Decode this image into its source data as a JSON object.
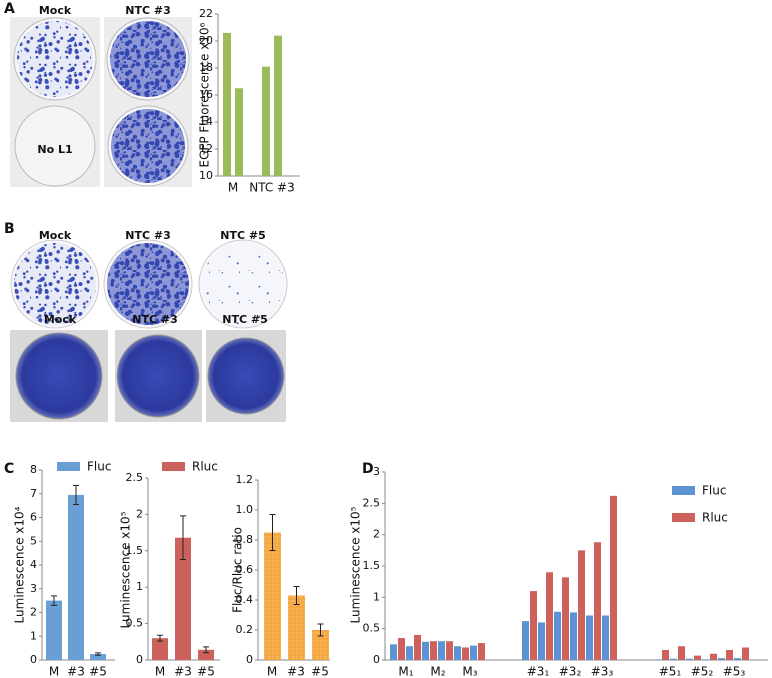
{
  "panel_labels": [
    "A",
    "B",
    "C",
    "D"
  ],
  "photo_labels": {
    "A": [
      "Mock",
      "NTC #3",
      "No L1"
    ],
    "B": [
      "Mock",
      "NTC #3",
      "NTC #5",
      "Mock",
      "NTC #3",
      "NTC #5"
    ]
  },
  "chart_data": [
    {
      "type": "bar",
      "ylabel": "EGFP Fluorescence x10⁶",
      "categories": [
        "M",
        "NTC #3"
      ],
      "series": [
        {
          "color": "#9bbb59",
          "values": [
            20.6,
            18.1
          ]
        },
        {
          "color": "#9bbb59",
          "values": [
            16.5,
            20.4
          ]
        }
      ],
      "ylim": [
        10,
        22
      ],
      "yticks": [
        10,
        12,
        14,
        16,
        18,
        20,
        22
      ]
    },
    {
      "type": "bar",
      "ylabel": "Luminescence x10⁴",
      "categories": [
        "M",
        "#3",
        "#5"
      ],
      "series": [
        {
          "name": "Fluc",
          "color": "#6a9fd6",
          "values": [
            2.5,
            6.95,
            0.25
          ],
          "errors": [
            0.2,
            0.4,
            0.05
          ]
        }
      ],
      "ylim": [
        0,
        8
      ],
      "yticks": [
        0,
        1,
        2,
        3,
        4,
        5,
        6,
        7,
        8
      ]
    },
    {
      "type": "bar",
      "ylabel": "Luminescence x10⁵",
      "categories": [
        "M",
        "#3",
        "#5"
      ],
      "series": [
        {
          "name": "Rluc",
          "color": "#cd625d",
          "values": [
            0.3,
            1.68,
            0.14
          ],
          "errors": [
            0.04,
            0.3,
            0.04
          ]
        }
      ],
      "ylim": [
        0,
        2.5
      ],
      "yticks": [
        0,
        0.5,
        1,
        1.5,
        2,
        2.5
      ]
    },
    {
      "type": "bar",
      "ylabel": "Fluc/Rluc ratio",
      "categories": [
        "M",
        "#3",
        "#5"
      ],
      "series": [
        {
          "color": "#f5a742",
          "values": [
            0.85,
            0.43,
            0.2
          ],
          "errors": [
            0.12,
            0.06,
            0.04
          ]
        }
      ],
      "ylim": [
        0,
        1.2
      ],
      "yticks": [
        0,
        0.2,
        0.4,
        0.6,
        0.8,
        {
          "value": 1,
          "label": "1.0"
        },
        1.2
      ]
    },
    {
      "type": "bar",
      "ylabel": "Luminescence x10⁵",
      "categories": [
        "M₁",
        null,
        "M₂",
        null,
        "M₃",
        null,
        "#3₁",
        null,
        "#3₂",
        null,
        "#3₃",
        null,
        "#5₁",
        null,
        "#5₂",
        null,
        "#5₃",
        null
      ],
      "series": [
        {
          "name": "Fluc",
          "color": "#5b93d3",
          "values": [
            0.25,
            0.22,
            0.29,
            0.3,
            0.22,
            0.23,
            0.62,
            0.6,
            0.77,
            0.76,
            0.71,
            0.71,
            0.01,
            0.02,
            0.02,
            0.01,
            0.03,
            0.03
          ]
        },
        {
          "name": "Rluc",
          "color": "#cd625d",
          "values": [
            0.35,
            0.4,
            0.3,
            0.3,
            0.2,
            0.27,
            1.1,
            1.4,
            1.32,
            1.75,
            1.88,
            2.62,
            0.16,
            0.22,
            0.07,
            0.1,
            0.16,
            0.2
          ]
        }
      ],
      "ylim": [
        0,
        3
      ],
      "yticks": [
        0,
        0.5,
        1,
        1.5,
        2,
        2.5,
        3
      ]
    }
  ]
}
